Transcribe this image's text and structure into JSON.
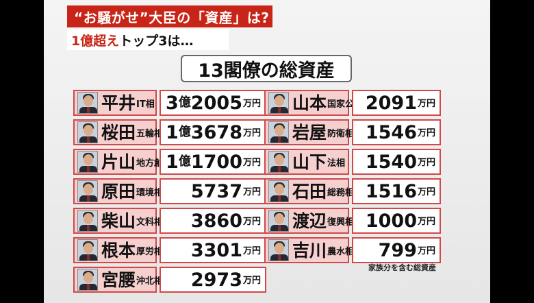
{
  "header": {
    "banner_text": "“お騒がせ”大臣の「資産」は?",
    "subline_red": "1億超え",
    "subline_rest": "トップ3は…",
    "title": "13閣僚の総資産"
  },
  "left_column": [
    {
      "name": "平井",
      "post": "IT相",
      "oku": "3",
      "oku_unit": "億",
      "man": "2005",
      "unit": "万円"
    },
    {
      "name": "桜田",
      "post": "五輪相",
      "oku": "1",
      "oku_unit": "億",
      "man": "3678",
      "unit": "万円"
    },
    {
      "name": "片山",
      "post": "地方創生相",
      "oku": "1",
      "oku_unit": "億",
      "man": "1700",
      "unit": "万円"
    },
    {
      "name": "原田",
      "post": "環境相",
      "oku": "",
      "oku_unit": "",
      "man": "5737",
      "unit": "万円"
    },
    {
      "name": "柴山",
      "post": "文科相",
      "oku": "",
      "oku_unit": "",
      "man": "3860",
      "unit": "万円"
    },
    {
      "name": "根本",
      "post": "厚労相",
      "oku": "",
      "oku_unit": "",
      "man": "3301",
      "unit": "万円"
    },
    {
      "name": "宮腰",
      "post": "沖北相",
      "oku": "",
      "oku_unit": "",
      "man": "2973",
      "unit": "万円"
    }
  ],
  "right_column": [
    {
      "name": "山本",
      "post": "国家公安委員長",
      "man": "2091",
      "unit": "万円"
    },
    {
      "name": "岩屋",
      "post": "防衛相",
      "man": "1546",
      "unit": "万円"
    },
    {
      "name": "山下",
      "post": "法相",
      "man": "1540",
      "unit": "万円"
    },
    {
      "name": "石田",
      "post": "総務相",
      "man": "1516",
      "unit": "万円"
    },
    {
      "name": "渡辺",
      "post": "復興相",
      "man": "1000",
      "unit": "万円"
    },
    {
      "name": "吉川",
      "post": "農水相",
      "man": "799",
      "unit": "万円"
    }
  ],
  "footnote": "家族分を含む総資産",
  "colors": {
    "banner": "#c82417",
    "name_cell": "#f6cfcf",
    "border": "#d04848"
  }
}
